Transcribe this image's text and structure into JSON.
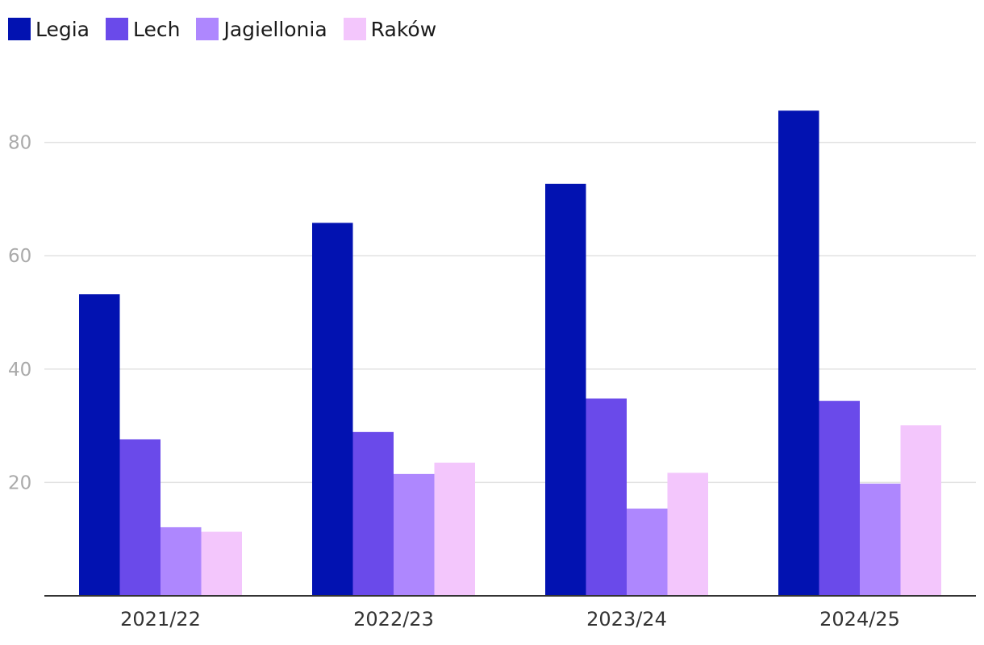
{
  "chart_data": {
    "type": "bar",
    "title": "",
    "xlabel": "",
    "ylabel": "",
    "categories": [
      "2021/22",
      "2022/23",
      "2023/24",
      "2024/25"
    ],
    "series": [
      {
        "name": "Legia",
        "color": "#0212b1",
        "values": [
          53.2,
          65.8,
          72.7,
          85.6
        ]
      },
      {
        "name": "Lech",
        "color": "#6a4aea",
        "values": [
          27.6,
          28.9,
          34.8,
          34.4
        ]
      },
      {
        "name": "Jagiellonia",
        "color": "#ae87fe",
        "values": [
          12.1,
          21.5,
          15.4,
          19.8
        ]
      },
      {
        "name": "Raków",
        "color": "#f3c6fc",
        "values": [
          11.3,
          23.5,
          21.7,
          30.1
        ]
      }
    ],
    "ylim": [
      0,
      90
    ],
    "yticks": [
      20,
      40,
      60,
      80
    ],
    "grid": true,
    "legend": "top-left"
  }
}
